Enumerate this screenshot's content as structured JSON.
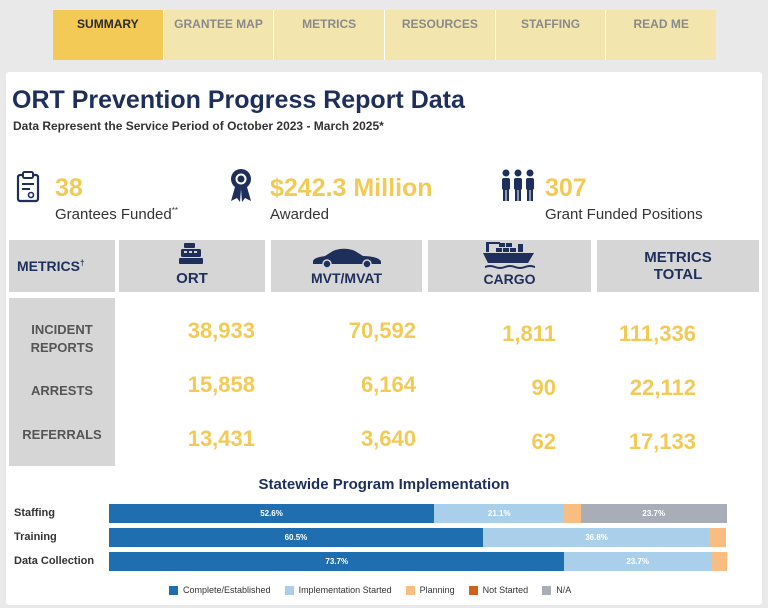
{
  "tabs": [
    "SUMMARY",
    "GRANTEE MAP",
    "METRICS",
    "RESOURCES",
    "STAFFING",
    "READ ME"
  ],
  "active_tab": 0,
  "header": {
    "title": "ORT Prevention Progress Report Data",
    "subtitle": "Data Represent the Service Period of October 2023 - March 2025*"
  },
  "kpis": [
    {
      "icon": "clipboard-icon",
      "value": "38",
      "label": "Grantees Funded",
      "label_mark": "**"
    },
    {
      "icon": "award-ribbon-icon",
      "value": "$242.3 Million",
      "label": "Awarded",
      "label_mark": ""
    },
    {
      "icon": "people-group-icon",
      "value": "307",
      "label": "Grant Funded Positions",
      "label_mark": ""
    }
  ],
  "metrics_table": {
    "corner_label": "METRICS",
    "corner_mark": "†",
    "columns": [
      {
        "label": "ORT",
        "icon": "cash-register-icon"
      },
      {
        "label": "MVT/MVAT",
        "icon": "car-icon"
      },
      {
        "label": "CARGO",
        "icon": "cargo-ship-icon"
      },
      {
        "label": "METRICS TOTAL",
        "icon": ""
      }
    ],
    "rows": [
      {
        "label": "INCIDENT REPORTS",
        "values": [
          "38,933",
          "70,592",
          "1,811",
          "111,336"
        ]
      },
      {
        "label": "ARRESTS",
        "values": [
          "15,858",
          "6,164",
          "90",
          "22,112"
        ]
      },
      {
        "label": "REFERRALS",
        "values": [
          "13,431",
          "3,640",
          "62",
          "17,133"
        ]
      }
    ]
  },
  "chart_data": {
    "type": "bar",
    "stacked": true,
    "orientation": "horizontal",
    "title": "Statewide Program Implementation",
    "categories": [
      "Staffing",
      "Training",
      "Data Collection"
    ],
    "series": [
      {
        "name": "Complete/Established",
        "color": "#1f6fb0",
        "values": [
          52.6,
          60.5,
          73.7
        ]
      },
      {
        "name": "Implementation Started",
        "color": "#a9cfea",
        "values": [
          21.1,
          36.8,
          23.7
        ]
      },
      {
        "name": "Planning",
        "color": "#f9bd82",
        "values": [
          2.6,
          2.6,
          2.6
        ]
      },
      {
        "name": "Not Started",
        "color": "#d0611c",
        "values": [
          0,
          0,
          0
        ]
      },
      {
        "name": "N/A",
        "color": "#a8adb7",
        "values": [
          23.7,
          0,
          0
        ]
      }
    ],
    "data_labels": [
      [
        "52.6%",
        "21.1%",
        "",
        "",
        "23.7%"
      ],
      [
        "60.5%",
        "36.8%",
        "",
        "",
        ""
      ],
      [
        "73.7%",
        "23.7%",
        "",
        "",
        ""
      ]
    ],
    "legend_position": "bottom"
  }
}
